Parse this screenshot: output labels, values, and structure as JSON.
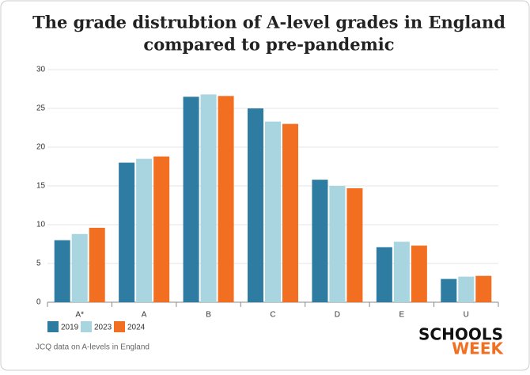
{
  "chart_data": {
    "type": "bar",
    "title": [
      "The grade distrubtion of A-level grades in England",
      "compared to pre-pandemic"
    ],
    "categories": [
      "A*",
      "A",
      "B",
      "C",
      "D",
      "E",
      "U"
    ],
    "series": [
      {
        "name": "2019",
        "color": "#2f7ca3",
        "values": [
          8.0,
          18.0,
          26.5,
          25.0,
          15.8,
          7.1,
          3.0
        ]
      },
      {
        "name": "2023",
        "color": "#a9d5e1",
        "values": [
          8.8,
          18.5,
          26.8,
          23.3,
          15.0,
          7.8,
          3.3
        ]
      },
      {
        "name": "2024",
        "color": "#f26f21",
        "values": [
          9.6,
          18.8,
          26.6,
          23.0,
          14.7,
          7.3,
          3.4
        ]
      }
    ],
    "ylim": [
      0,
      30
    ],
    "yticks": [
      0,
      5,
      10,
      15,
      20,
      25,
      30
    ],
    "grid": true,
    "source": "JCQ data on A-levels in England",
    "brand": [
      "SCHOOLS",
      "WEEK"
    ]
  }
}
